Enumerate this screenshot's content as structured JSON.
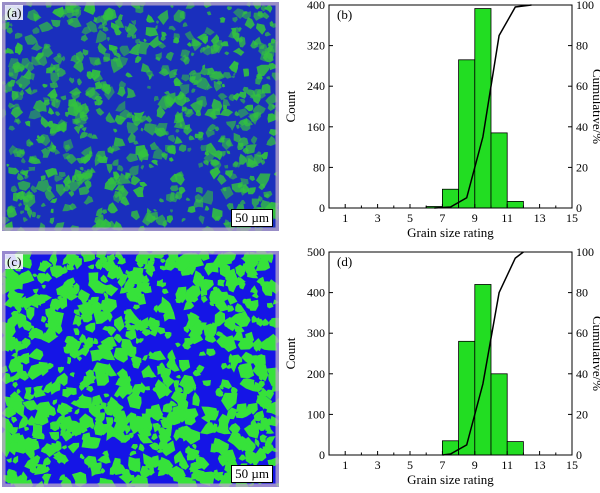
{
  "micrographs": [
    {
      "label": "(a)",
      "scale_bar": "50 µm",
      "colors": {
        "base": "#1a2fbd",
        "grain": "#33c23f",
        "edge": "#b9a6c9"
      }
    },
    {
      "label": "(c)",
      "scale_bar": "50 µm",
      "colors": {
        "base": "#1515e6",
        "grain": "#36e23a",
        "edge": "#b9a6c9"
      }
    }
  ],
  "chart_data": [
    {
      "type": "bar",
      "panel_label": "(b)",
      "xlabel": "Grain size rating",
      "ylabel": "Count",
      "y2label": "Cumulative/%",
      "x_ticks": [
        1,
        3,
        5,
        7,
        9,
        11,
        13,
        15
      ],
      "xlim": [
        0,
        15
      ],
      "ylim": [
        0,
        400
      ],
      "y_ticks": [
        0,
        80,
        160,
        240,
        320,
        400
      ],
      "y2lim": [
        0,
        100
      ],
      "y2_ticks": [
        0,
        20,
        40,
        60,
        80,
        100
      ],
      "bar_color": "#22dd22",
      "bins": [
        {
          "center": 6.5,
          "value": 3
        },
        {
          "center": 7.5,
          "value": 37
        },
        {
          "center": 8.5,
          "value": 292
        },
        {
          "center": 9.5,
          "value": 393
        },
        {
          "center": 10.5,
          "value": 148
        },
        {
          "center": 11.5,
          "value": 13
        }
      ],
      "cumulative": [
        [
          6.5,
          0
        ],
        [
          7.5,
          0.5
        ],
        [
          8.5,
          5
        ],
        [
          9.5,
          35
        ],
        [
          10.5,
          85
        ],
        [
          11.5,
          99
        ],
        [
          12.5,
          100
        ]
      ]
    },
    {
      "type": "bar",
      "panel_label": "(d)",
      "xlabel": "Grain size rating",
      "ylabel": "Count",
      "y2label": "Cumulative/%",
      "x_ticks": [
        1,
        3,
        5,
        7,
        9,
        11,
        13,
        15
      ],
      "xlim": [
        0,
        15
      ],
      "ylim": [
        0,
        500
      ],
      "y_ticks": [
        0,
        100,
        200,
        300,
        400,
        500
      ],
      "y2lim": [
        0,
        100
      ],
      "y2_ticks": [
        0,
        20,
        40,
        60,
        80,
        100
      ],
      "bar_color": "#22dd22",
      "bins": [
        {
          "center": 7.5,
          "value": 35
        },
        {
          "center": 8.5,
          "value": 280
        },
        {
          "center": 9.5,
          "value": 420
        },
        {
          "center": 10.5,
          "value": 200
        },
        {
          "center": 11.5,
          "value": 33
        }
      ],
      "cumulative": [
        [
          7,
          0
        ],
        [
          7.5,
          0.5
        ],
        [
          8.5,
          5
        ],
        [
          9.5,
          35
        ],
        [
          10.5,
          80
        ],
        [
          11.5,
          97
        ],
        [
          12,
          100
        ]
      ]
    }
  ]
}
